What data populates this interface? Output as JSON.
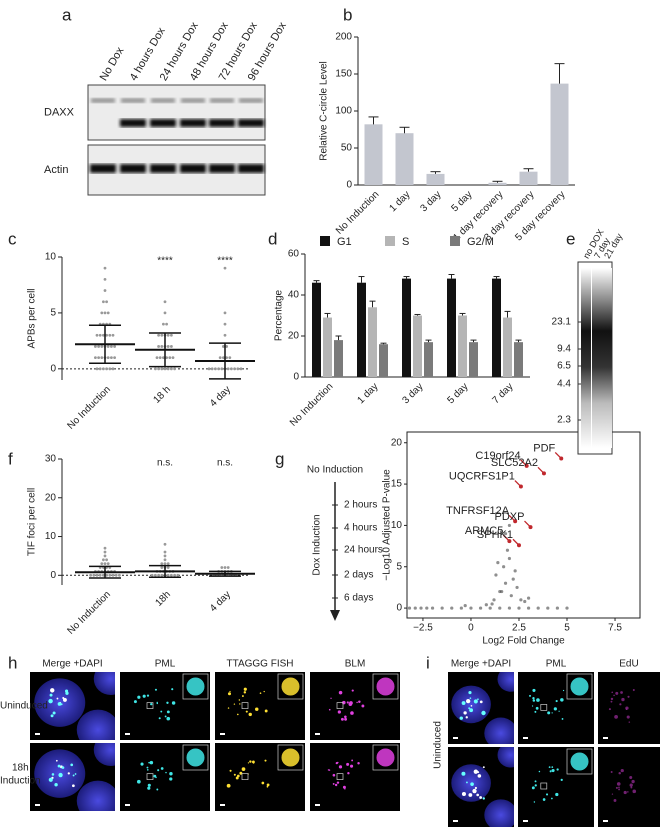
{
  "panels": [
    "a",
    "b",
    "c",
    "d",
    "e",
    "f",
    "g",
    "h",
    "i"
  ],
  "blot": {
    "lanes": [
      "No Dox",
      "4 hours Dox",
      "24 hours Dox",
      "48 hours Dox",
      "72 hours Dox",
      "96 hours Dox"
    ],
    "rows": [
      "DAXX",
      "Actin"
    ]
  },
  "gel": {
    "lanes": [
      "no DOX",
      "7 day",
      "21 day"
    ],
    "markers": [
      "23.1",
      "9.4",
      "6.5",
      "4.4",
      "2.3"
    ]
  },
  "timeline": {
    "start": "No Induction",
    "axis": "Dox Induction",
    "steps": [
      "2 hours",
      "4 hours",
      "24 hours",
      "2 days",
      "6 days"
    ]
  },
  "micrograph_h": {
    "columns": [
      "Merge +DAPI",
      "PML",
      "TTAGGG FISH",
      "BLM"
    ],
    "rows": [
      [
        "Uninduced"
      ],
      [
        "18h",
        "Induction"
      ]
    ]
  },
  "micrograph_i": {
    "columns": [
      "Merge +DAPI",
      "PML",
      "EdU"
    ],
    "rows": [
      "Uninduced"
    ]
  },
  "chart_data": [
    {
      "type": "bar",
      "y_label": "Relative C-circle Level",
      "categories": [
        "No Induction",
        "1 day",
        "3 day",
        "5 day",
        "1 day recovery",
        "3 day recovery",
        "5 day recovery"
      ],
      "values": [
        82,
        70,
        15,
        0,
        3,
        18,
        137
      ],
      "errors": [
        10,
        8,
        3,
        0,
        2,
        4,
        27
      ],
      "color": "#c3c6cf",
      "ylim": [
        0,
        200
      ],
      "yticks": [
        0,
        50,
        100,
        150,
        200
      ]
    },
    {
      "type": "dot",
      "y_label": "APBs per cell",
      "categories": [
        "No Induction",
        "18 h",
        "4 day"
      ],
      "annotations": [
        null,
        "****",
        "****"
      ],
      "points": [
        [
          0,
          0,
          0,
          0,
          0,
          0,
          1,
          1,
          1,
          1,
          1,
          1,
          1,
          2,
          2,
          2,
          2,
          2,
          2,
          2,
          3,
          3,
          3,
          3,
          3,
          3,
          4,
          4,
          4,
          4,
          5,
          5,
          5,
          6,
          6,
          7,
          8,
          9
        ],
        [
          0,
          0,
          0,
          0,
          0,
          0,
          0,
          1,
          1,
          1,
          1,
          1,
          1,
          2,
          2,
          2,
          2,
          2,
          3,
          3,
          3,
          3,
          3,
          4,
          4,
          5,
          6
        ],
        [
          0,
          0,
          0,
          0,
          0,
          0,
          0,
          0,
          0,
          0,
          0,
          1,
          1,
          1,
          1,
          2,
          2,
          3,
          4,
          5,
          9
        ]
      ],
      "mean": [
        2.2,
        1.7,
        0.7
      ],
      "sd": [
        1.7,
        1.5,
        1.6
      ],
      "color": "#999999",
      "ylim": [
        -1,
        10
      ],
      "yticks": [
        0,
        5,
        10
      ]
    },
    {
      "type": "grouped_bar",
      "y_label": "Percentage",
      "categories": [
        "No Induction",
        "1 day",
        "3 day",
        "5 day",
        "7 day"
      ],
      "series": [
        {
          "name": "G1",
          "color": "#111111",
          "values": [
            46,
            46,
            48,
            48,
            48
          ],
          "errors": [
            1,
            3,
            1,
            2,
            1
          ]
        },
        {
          "name": "S",
          "color": "#b5b5b5",
          "values": [
            29,
            34,
            30,
            30,
            29
          ],
          "errors": [
            2,
            3,
            0.5,
            1,
            3
          ]
        },
        {
          "name": "G2/M",
          "color": "#7a7a7a",
          "values": [
            18,
            16,
            17,
            17,
            17
          ],
          "errors": [
            2,
            0.5,
            1,
            1,
            1
          ]
        }
      ],
      "ylim": [
        0,
        60
      ],
      "yticks": [
        0,
        20,
        40,
        60
      ]
    },
    {
      "type": "dot",
      "y_label": "TIF foci per cell",
      "categories": [
        "No Induction",
        "18h",
        "4 day"
      ],
      "annotations": [
        null,
        "n.s.",
        "n.s."
      ],
      "points": [
        [
          0,
          0,
          0,
          0,
          0,
          0,
          0,
          0,
          0,
          0,
          1,
          1,
          1,
          1,
          1,
          1,
          1,
          2,
          2,
          2,
          2,
          3,
          3,
          3,
          4,
          4,
          5,
          6,
          7
        ],
        [
          0,
          0,
          0,
          0,
          0,
          0,
          0,
          0,
          0,
          1,
          1,
          1,
          1,
          1,
          1,
          2,
          2,
          2,
          3,
          3,
          3,
          4,
          5,
          6,
          8
        ],
        [
          0,
          0,
          0,
          0,
          0,
          0,
          0,
          0,
          1,
          1,
          1,
          1,
          1,
          2,
          2,
          2
        ]
      ],
      "mean": [
        0.8,
        1.0,
        0.4
      ],
      "sd": [
        1.5,
        1.5,
        0.6
      ],
      "color": "#999999",
      "ylim": [
        -2.5,
        30
      ],
      "yticks": [
        0,
        10,
        20,
        30
      ]
    },
    {
      "type": "scatter",
      "x_label": "Log2 Fold Change",
      "y_label": "−Log10 Adjusted P-value",
      "x": [
        -3.2,
        -2.9,
        -2.6,
        -2.3,
        -2,
        -1.5,
        -1,
        -0.5,
        0,
        0.5,
        1,
        1.5,
        2,
        2.5,
        3,
        3.5,
        4,
        4.5,
        5,
        1.2,
        1.5,
        1.8,
        2.1,
        2.4,
        1.3,
        1.7,
        2.0,
        2.6,
        1.1,
        1.9,
        2.2,
        1.6,
        2.8,
        3.0,
        1.4,
        2.3,
        -0.3,
        0.8,
        2.0,
        1.8
      ],
      "y": [
        0,
        0,
        0,
        0,
        0,
        0,
        0,
        0,
        0,
        0,
        0,
        0,
        0,
        0,
        0,
        0,
        0,
        0,
        0,
        1,
        2,
        3,
        1.5,
        2.5,
        4,
        5,
        6,
        1,
        0.5,
        7,
        3.5,
        2,
        0.8,
        1.2,
        5.5,
        4.5,
        0.3,
        0.4,
        10,
        9
      ],
      "color": "#333333",
      "annotations": [
        {
          "text": "PDF",
          "x": 4.7,
          "y": 18.1
        },
        {
          "text": "C19orf24",
          "x": 2.9,
          "y": 17.2
        },
        {
          "text": "SLC52A2",
          "x": 3.8,
          "y": 16.3
        },
        {
          "text": "UQCRFS1P1",
          "x": 2.6,
          "y": 14.7
        },
        {
          "text": "TNFRSF12A",
          "x": 2.3,
          "y": 10.5
        },
        {
          "text": "PDXP",
          "x": 3.1,
          "y": 9.8
        },
        {
          "text": "ARMC5",
          "x": 2.0,
          "y": 8.1
        },
        {
          "text": "SPHK1",
          "x": 2.5,
          "y": 7.6
        }
      ],
      "annotation_color": "#c0282d",
      "xlim": [
        -3.33,
        8.8
      ],
      "xticks": [
        {
          "value": -2.5,
          "label": "−2.5"
        },
        0,
        2.5,
        5,
        7.5
      ],
      "ylim": [
        -1.2,
        21.3
      ],
      "yticks": [
        0,
        5,
        10,
        15,
        20
      ]
    }
  ]
}
